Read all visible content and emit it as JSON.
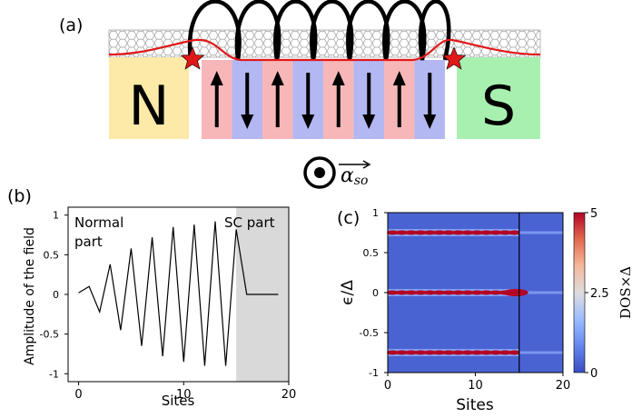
{
  "panel_a": {
    "label": "(a)",
    "left_lead": "N",
    "right_lead": "S",
    "vector_label": "α",
    "vector_subscript": "so",
    "colors": {
      "normal_lead": "#fdeaa8",
      "sc_lead": "#a8f0b0",
      "spin_up": "#f7b7b9",
      "spin_down": "#b3b8f3",
      "field_curve": "#e01818",
      "impurity_star": "#e01818"
    },
    "spin_sequence": [
      "up",
      "down",
      "up",
      "down",
      "up",
      "down",
      "up",
      "down"
    ]
  },
  "panel_b": {
    "label": "(b)",
    "ylabel": "Amplitude of the field",
    "xlabel": "Sites",
    "region_left": "Normal part",
    "region_left_line1": "Normal",
    "region_left_line2": "part",
    "region_right": "SC part",
    "yticks": [
      "1",
      "0.5",
      "0",
      "-0.5",
      "-1"
    ],
    "xticks": [
      "0",
      "10",
      "20"
    ],
    "shade_color": "#d9d9d9"
  },
  "panel_c": {
    "label": "(c)",
    "ylabel": "ϵ/Δ",
    "xlabel": "Sites",
    "yticks": [
      "1",
      "0.5",
      "0",
      "-0.5",
      "-1"
    ],
    "xticks": [
      "0",
      "10",
      "20"
    ],
    "colorbar_label": "DOS×Δ",
    "colorbar_ticks": [
      "5",
      "2.5",
      "0"
    ],
    "colormap": [
      "#3b4cc0",
      "#7396f5",
      "#b0cbfc",
      "#dddddd",
      "#f6bfa6",
      "#e7745b",
      "#b40426"
    ]
  },
  "chart_data": [
    {
      "type": "line",
      "xlabel": "Sites",
      "ylabel": "Amplitude of the field",
      "x": [
        0,
        1,
        2,
        3,
        4,
        5,
        6,
        7,
        8,
        9,
        10,
        11,
        12,
        13,
        14,
        15,
        16,
        17,
        18,
        19
      ],
      "series": [
        {
          "values": [
            0.02,
            0.1,
            -0.22,
            0.38,
            -0.45,
            0.58,
            -0.65,
            0.72,
            -0.78,
            0.85,
            -0.85,
            0.88,
            -0.9,
            0.92,
            -0.9,
            0.82,
            0.0,
            0.0,
            0.0,
            0.0
          ]
        }
      ],
      "xlim": [
        -1,
        20
      ],
      "ylim": [
        -1.1,
        1.1
      ],
      "shaded_x_range": [
        15,
        20
      ]
    },
    {
      "type": "heatmap",
      "xlabel": "Sites",
      "ylabel": "ϵ/Δ",
      "xlim": [
        0,
        20
      ],
      "ylim": [
        -1,
        1
      ],
      "interface_x": 15,
      "bands": [
        {
          "energy": 0.75,
          "x_range": [
            0,
            15
          ],
          "intensity": 4.5
        },
        {
          "energy": 0.0,
          "x_range": [
            0,
            15
          ],
          "intensity": 4.0
        },
        {
          "energy": -0.75,
          "x_range": [
            0,
            15
          ],
          "intensity": 4.5
        }
      ],
      "colorbar": {
        "label": "DOS×Δ",
        "min": 0,
        "max": 5,
        "ticks": [
          0,
          2.5,
          5
        ]
      }
    }
  ]
}
